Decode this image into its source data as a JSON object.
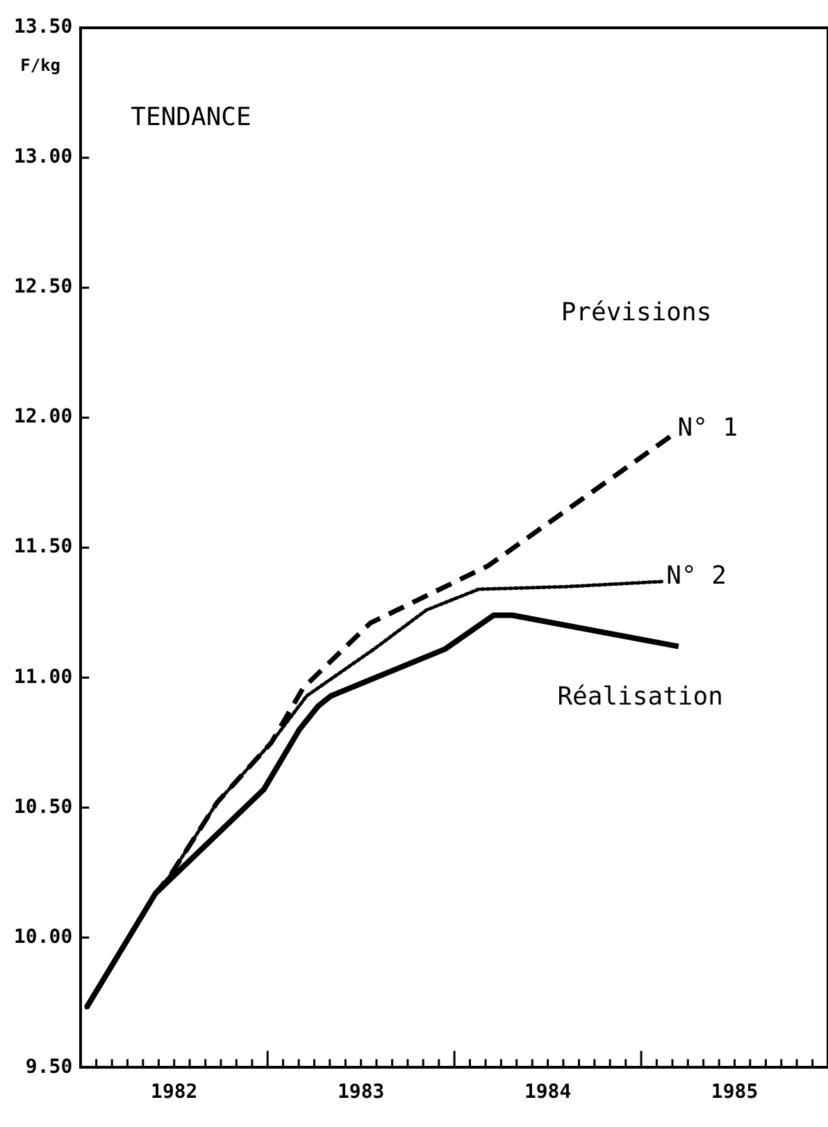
{
  "chart_data": {
    "type": "line",
    "title": "TENDANCE",
    "ylabel": "F/kg",
    "annotations": [
      "Prévisions"
    ],
    "legend": false,
    "grid": false,
    "marker": "none",
    "xlim": [
      1982,
      1986
    ],
    "ylim": [
      9.5,
      13.5
    ],
    "xticks": [
      {
        "value": 1982,
        "label": null
      },
      {
        "value": 1982.083,
        "label": null
      },
      {
        "value": 1982.167,
        "label": null
      },
      {
        "value": 1982.25,
        "label": null
      },
      {
        "value": 1982.333,
        "label": null
      },
      {
        "value": 1982.417,
        "label": null
      },
      {
        "value": 1982.5,
        "label": "1982"
      },
      {
        "value": 1982.583,
        "label": null
      },
      {
        "value": 1982.667,
        "label": null
      },
      {
        "value": 1982.75,
        "label": null
      },
      {
        "value": 1982.833,
        "label": null
      },
      {
        "value": 1982.917,
        "label": null
      },
      {
        "value": 1983,
        "label": null
      },
      {
        "value": 1983.083,
        "label": null
      },
      {
        "value": 1983.167,
        "label": null
      },
      {
        "value": 1983.25,
        "label": null
      },
      {
        "value": 1983.333,
        "label": null
      },
      {
        "value": 1983.417,
        "label": null
      },
      {
        "value": 1983.5,
        "label": "1983"
      },
      {
        "value": 1983.583,
        "label": null
      },
      {
        "value": 1983.667,
        "label": null
      },
      {
        "value": 1983.75,
        "label": null
      },
      {
        "value": 1983.833,
        "label": null
      },
      {
        "value": 1983.917,
        "label": null
      },
      {
        "value": 1984,
        "label": null
      },
      {
        "value": 1984.083,
        "label": null
      },
      {
        "value": 1984.167,
        "label": null
      },
      {
        "value": 1984.25,
        "label": null
      },
      {
        "value": 1984.333,
        "label": null
      },
      {
        "value": 1984.417,
        "label": null
      },
      {
        "value": 1984.5,
        "label": "1984"
      },
      {
        "value": 1984.583,
        "label": null
      },
      {
        "value": 1984.667,
        "label": null
      },
      {
        "value": 1984.75,
        "label": null
      },
      {
        "value": 1984.833,
        "label": null
      },
      {
        "value": 1984.917,
        "label": null
      },
      {
        "value": 1985,
        "label": null
      },
      {
        "value": 1985.083,
        "label": null
      },
      {
        "value": 1985.167,
        "label": null
      },
      {
        "value": 1985.25,
        "label": null
      },
      {
        "value": 1985.333,
        "label": null
      },
      {
        "value": 1985.417,
        "label": null
      },
      {
        "value": 1985.5,
        "label": "1985"
      },
      {
        "value": 1985.583,
        "label": null
      },
      {
        "value": 1985.667,
        "label": null
      },
      {
        "value": 1985.75,
        "label": null
      },
      {
        "value": 1985.833,
        "label": null
      },
      {
        "value": 1985.917,
        "label": null
      }
    ],
    "yticks": [
      {
        "value": 9.5,
        "label": "9.50"
      },
      {
        "value": 10,
        "label": "10.00"
      },
      {
        "value": 10.5,
        "label": "10.50"
      },
      {
        "value": 11,
        "label": "11.00"
      },
      {
        "value": 11.5,
        "label": "11.50"
      },
      {
        "value": 12,
        "label": "12.00"
      },
      {
        "value": 12.5,
        "label": "12.50"
      },
      {
        "value": 13,
        "label": "13.00"
      },
      {
        "value": 13.5,
        "label": "13.50"
      }
    ],
    "series": [
      {
        "name": "N° 1",
        "color": "#000000",
        "line_style": "dashed",
        "x": [
          1982.03,
          1982.4,
          1982.48,
          1982.73,
          1983.02,
          1983.19,
          1983.55,
          1984.18,
          1985.18
        ],
        "values": [
          9.73,
          10.17,
          10.24,
          10.52,
          10.75,
          10.96,
          11.21,
          11.43,
          11.94
        ]
      },
      {
        "name": "N° 2",
        "color": "#000000",
        "line_style": "dotted",
        "x": [
          1982.03,
          1982.4,
          1982.48,
          1982.73,
          1983.02,
          1983.21,
          1983.57,
          1983.85,
          1984.13,
          1984.6,
          1985.12
        ],
        "values": [
          9.73,
          10.17,
          10.24,
          10.52,
          10.75,
          10.93,
          11.11,
          11.26,
          11.34,
          11.35,
          11.37
        ]
      },
      {
        "name": "Réalisation",
        "color": "#000000",
        "line_style": "solid",
        "x": [
          1982.03,
          1982.4,
          1982.98,
          1983.17,
          1983.27,
          1983.34,
          1983.95,
          1984.21,
          1984.31,
          1985.2
        ],
        "values": [
          9.73,
          10.17,
          10.57,
          10.8,
          10.89,
          10.93,
          11.11,
          11.24,
          11.24,
          11.12
        ]
      }
    ]
  }
}
